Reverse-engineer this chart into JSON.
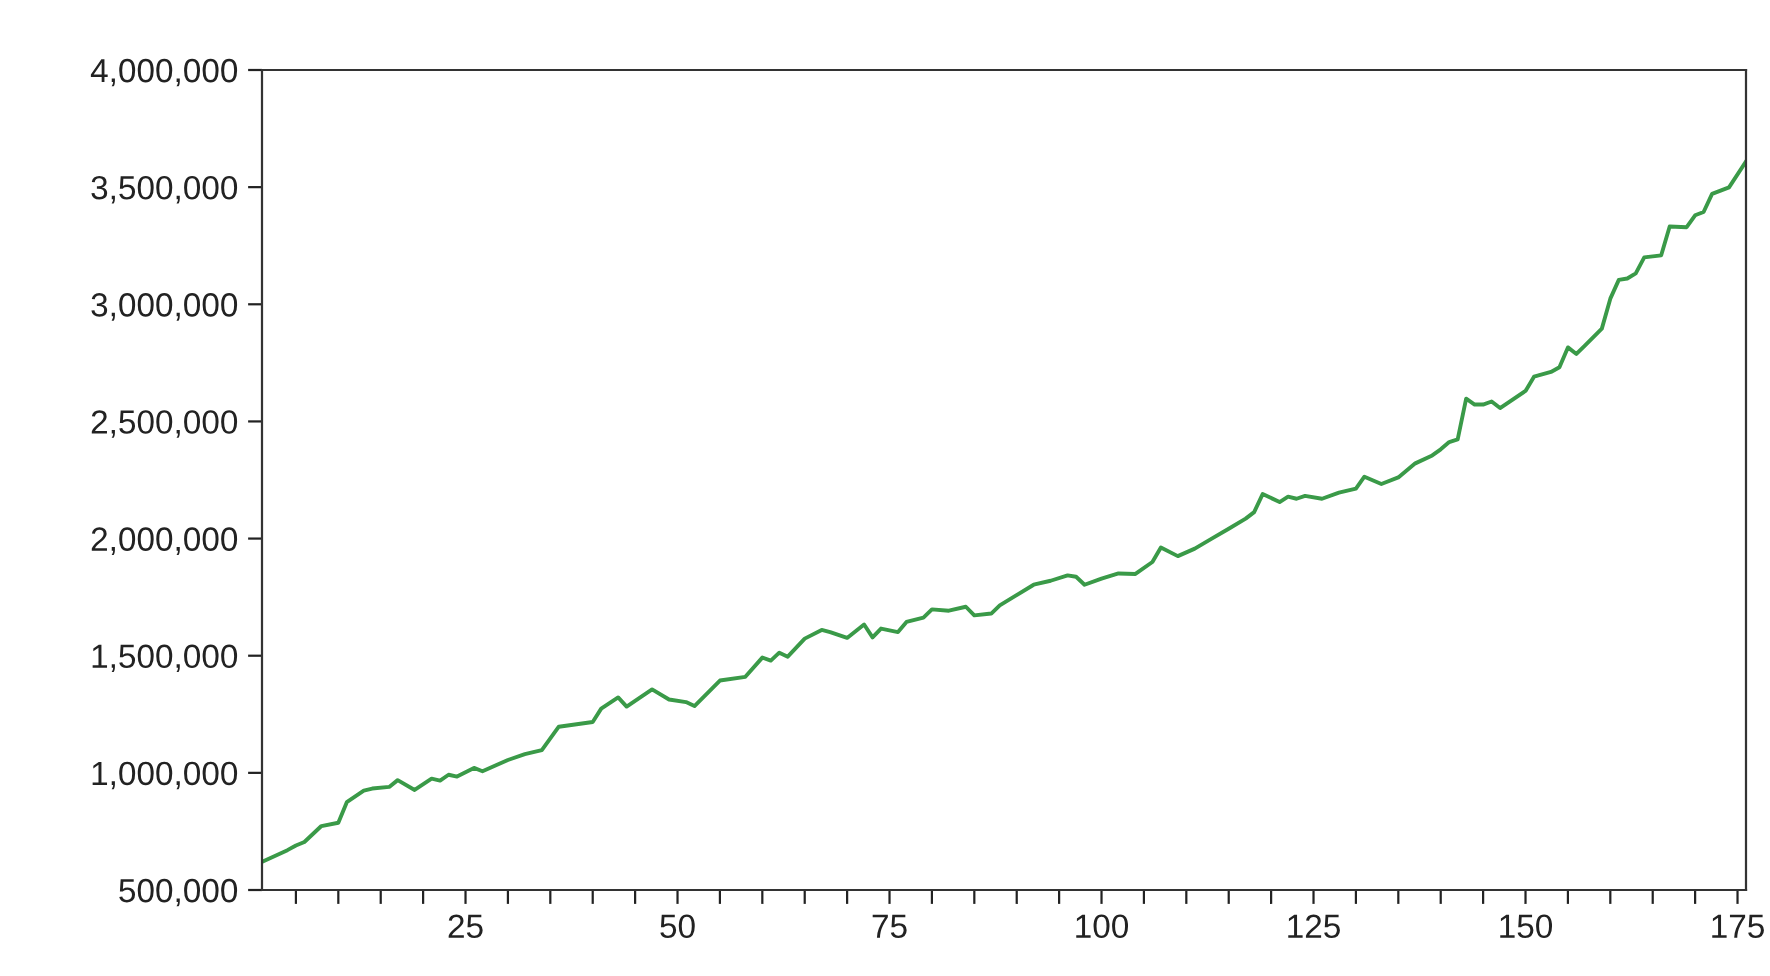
{
  "chart_data": {
    "type": "line",
    "x": [
      1,
      4,
      5,
      6,
      8,
      10,
      11,
      13,
      14,
      16,
      17,
      19,
      21,
      22,
      23,
      24,
      26,
      27,
      30,
      32,
      34,
      36,
      40,
      41,
      43,
      44,
      47,
      49,
      51,
      52,
      55,
      58,
      60,
      61,
      62,
      63,
      65,
      67,
      68,
      70,
      72,
      73,
      74,
      76,
      77,
      79,
      80,
      82,
      84,
      85,
      87,
      88,
      92,
      94,
      96,
      97,
      98,
      100,
      102,
      104,
      106,
      107,
      109,
      111,
      113,
      115,
      117,
      118,
      119,
      121,
      122,
      123,
      124,
      126,
      128,
      130,
      131,
      133,
      135,
      137,
      139,
      140,
      141,
      142,
      143,
      144,
      145,
      146,
      147,
      150,
      151,
      153,
      154,
      155,
      156,
      157,
      159,
      160,
      161,
      162,
      163,
      164,
      166,
      167,
      169,
      170,
      171,
      172,
      174,
      176
    ],
    "series": [
      {
        "color": "#3a9a48",
        "values": [
          620000,
          670000,
          690000,
          705000,
          773000,
          787000,
          875000,
          924000,
          933000,
          940000,
          969000,
          927000,
          975000,
          967000,
          992000,
          984000,
          1021000,
          1007000,
          1055000,
          1080000,
          1097000,
          1197000,
          1217000,
          1274000,
          1322000,
          1283000,
          1356000,
          1313000,
          1302000,
          1285000,
          1394000,
          1410000,
          1492000,
          1479000,
          1513000,
          1496000,
          1573000,
          1610000,
          1601000,
          1576000,
          1633000,
          1578000,
          1616000,
          1601000,
          1644000,
          1663000,
          1698000,
          1692000,
          1709000,
          1672000,
          1680000,
          1715000,
          1803000,
          1820000,
          1843000,
          1837000,
          1803000,
          1829000,
          1851000,
          1849000,
          1900000,
          1962000,
          1925000,
          1957000,
          2000000,
          2042000,
          2085000,
          2113000,
          2190000,
          2156000,
          2179000,
          2170000,
          2182000,
          2170000,
          2196000,
          2213000,
          2264000,
          2233000,
          2261000,
          2321000,
          2355000,
          2381000,
          2412000,
          2423000,
          2597000,
          2572000,
          2572000,
          2585000,
          2557000,
          2630000,
          2691000,
          2711000,
          2731000,
          2816000,
          2788000,
          2824000,
          2896000,
          3024000,
          3104000,
          3110000,
          3132000,
          3200000,
          3209000,
          3332000,
          3329000,
          3380000,
          3394000,
          3471000,
          3499000,
          3610000
        ]
      }
    ],
    "xlim": [
      1,
      176
    ],
    "xticks": [
      {
        "value": 5,
        "label": null
      },
      {
        "value": 10,
        "label": null
      },
      {
        "value": 15,
        "label": null
      },
      {
        "value": 20,
        "label": null
      },
      25,
      {
        "value": 30,
        "label": null
      },
      {
        "value": 35,
        "label": null
      },
      {
        "value": 40,
        "label": null
      },
      {
        "value": 45,
        "label": null
      },
      50,
      {
        "value": 55,
        "label": null
      },
      {
        "value": 60,
        "label": null
      },
      {
        "value": 65,
        "label": null
      },
      {
        "value": 70,
        "label": null
      },
      75,
      {
        "value": 80,
        "label": null
      },
      {
        "value": 85,
        "label": null
      },
      {
        "value": 90,
        "label": null
      },
      {
        "value": 95,
        "label": null
      },
      100,
      {
        "value": 105,
        "label": null
      },
      {
        "value": 110,
        "label": null
      },
      {
        "value": 115,
        "label": null
      },
      {
        "value": 120,
        "label": null
      },
      125,
      {
        "value": 130,
        "label": null
      },
      {
        "value": 135,
        "label": null
      },
      {
        "value": 140,
        "label": null
      },
      {
        "value": 145,
        "label": null
      },
      150,
      {
        "value": 155,
        "label": null
      },
      {
        "value": 160,
        "label": null
      },
      {
        "value": 165,
        "label": null
      },
      {
        "value": 170,
        "label": null
      },
      175
    ],
    "ylim": [
      500000,
      4000000
    ],
    "yticks": [
      {
        "value": 500000,
        "label": "500,000"
      },
      {
        "value": 1000000,
        "label": "1,000,000"
      },
      {
        "value": 1500000,
        "label": "1,500,000"
      },
      {
        "value": 2000000,
        "label": "2,000,000"
      },
      {
        "value": 2500000,
        "label": "2,500,000"
      },
      {
        "value": 3000000,
        "label": "3,000,000"
      },
      {
        "value": 3500000,
        "label": "3,500,000"
      },
      {
        "value": 4000000,
        "label": "4,000,000"
      }
    ],
    "grid": false,
    "legend": false
  }
}
